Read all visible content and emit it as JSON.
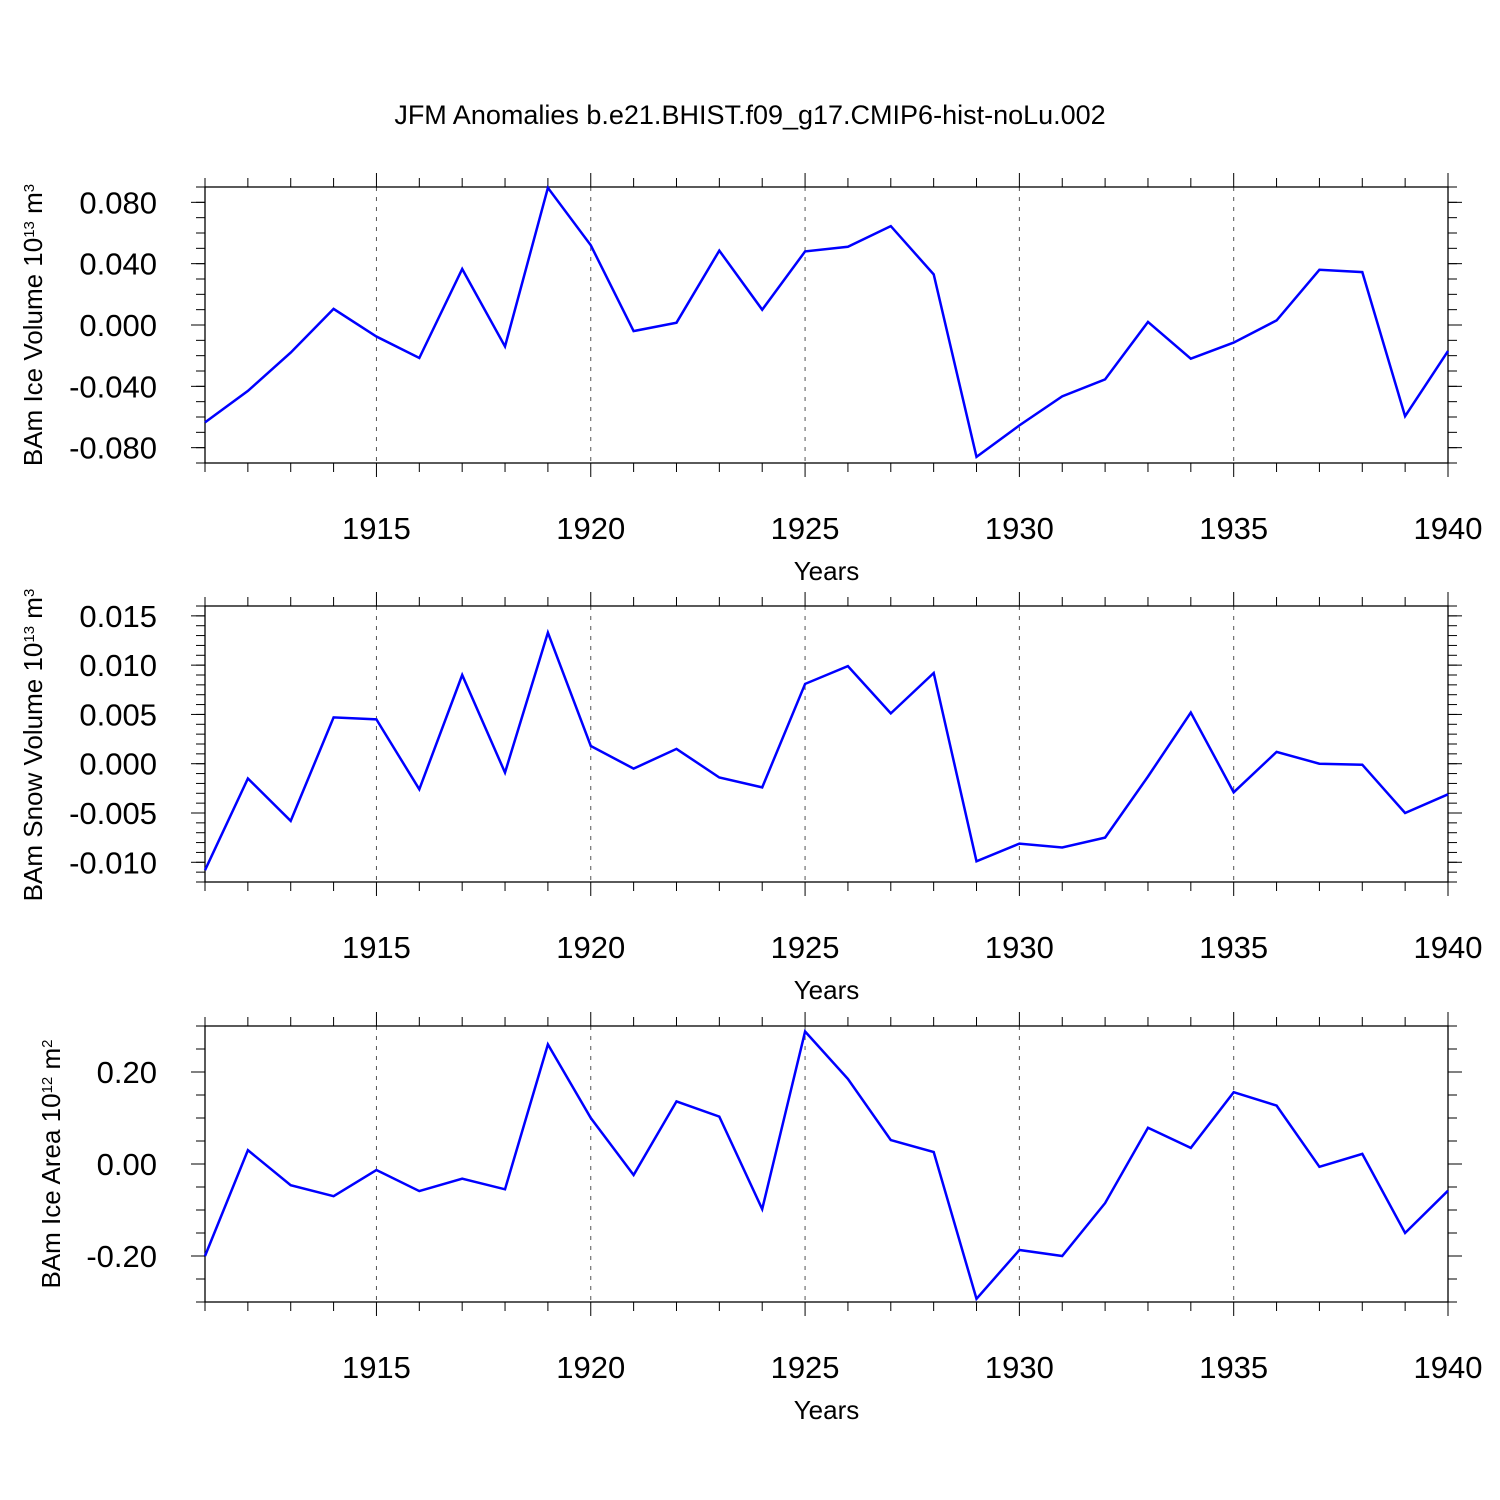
{
  "title": "JFM Anomalies b.e21.BHIST.f09_g17.CMIP6-hist-noLu.002",
  "chart_data": [
    {
      "type": "line",
      "title": "JFM Anomalies b.e21.BHIST.f09_g17.CMIP6-hist-noLu.002",
      "xlabel": "Years",
      "ylabel": "BAm Ice Volume 10",
      "ylabel_exp": "13",
      "ylabel_unit": " m",
      "ylabel_unit_exp": "3",
      "xlim": [
        1911,
        1940
      ],
      "ylim": [
        -0.09,
        0.09
      ],
      "xticks": [
        "1915",
        "1920",
        "1925",
        "1930",
        "1935",
        "1940"
      ],
      "yticks": [
        "0.080",
        "0.040",
        "0.000",
        "-0.040",
        "-0.080"
      ],
      "ytick_values": [
        0.08,
        0.04,
        0.0,
        -0.04,
        -0.08
      ],
      "yminor_step": 0.01,
      "color": "#0000ff",
      "x": [
        1911,
        1912,
        1913,
        1914,
        1915,
        1916,
        1917,
        1918,
        1919,
        1920,
        1921,
        1922,
        1923,
        1924,
        1925,
        1926,
        1927,
        1928,
        1929,
        1930,
        1931,
        1932,
        1933,
        1934,
        1935,
        1936,
        1937,
        1938,
        1939,
        1940
      ],
      "values": [
        -0.0635,
        -0.043,
        -0.018,
        0.0105,
        -0.0075,
        -0.0215,
        0.0365,
        -0.014,
        0.0895,
        0.052,
        -0.004,
        0.0015,
        0.0485,
        0.01,
        0.048,
        0.051,
        0.0645,
        0.033,
        -0.086,
        -0.0655,
        -0.0465,
        -0.0355,
        0.002,
        -0.022,
        -0.0115,
        0.003,
        0.036,
        0.0345,
        -0.0595,
        -0.017
      ]
    },
    {
      "type": "line",
      "xlabel": "Years",
      "ylabel": "BAm Snow Volume 10",
      "ylabel_exp": "13",
      "ylabel_unit": " m",
      "ylabel_unit_exp": "3",
      "xlim": [
        1911,
        1940
      ],
      "ylim": [
        -0.012,
        0.016
      ],
      "xticks": [
        "1915",
        "1920",
        "1925",
        "1930",
        "1935",
        "1940"
      ],
      "yticks": [
        "0.015",
        "0.010",
        "0.005",
        "0.000",
        "-0.005",
        "-0.010"
      ],
      "ytick_values": [
        0.015,
        0.01,
        0.005,
        0.0,
        -0.005,
        -0.01
      ],
      "yminor_step": 0.001,
      "color": "#0000ff",
      "x": [
        1911,
        1912,
        1913,
        1914,
        1915,
        1916,
        1917,
        1918,
        1919,
        1920,
        1921,
        1922,
        1923,
        1924,
        1925,
        1926,
        1927,
        1928,
        1929,
        1930,
        1931,
        1932,
        1933,
        1934,
        1935,
        1936,
        1937,
        1938,
        1939,
        1940
      ],
      "values": [
        -0.0108,
        -0.0015,
        -0.0058,
        0.0047,
        0.0045,
        -0.0026,
        0.009,
        -0.0009,
        0.0133,
        0.0018,
        -0.0005,
        0.0015,
        -0.0014,
        -0.0024,
        0.0081,
        0.0099,
        0.0051,
        0.0092,
        -0.0099,
        -0.0081,
        -0.0085,
        -0.0075,
        -0.0013,
        0.0052,
        -0.0029,
        0.0012,
        0.0,
        -0.0001,
        -0.005,
        -0.0031
      ]
    },
    {
      "type": "line",
      "xlabel": "Years",
      "ylabel": "BAm Ice Area 10",
      "ylabel_exp": "12",
      "ylabel_unit": " m",
      "ylabel_unit_exp": "2",
      "xlim": [
        1911,
        1940
      ],
      "ylim": [
        -0.3,
        0.3
      ],
      "xticks": [
        "1915",
        "1920",
        "1925",
        "1930",
        "1935",
        "1940"
      ],
      "yticks": [
        "0.20",
        "0.00",
        "-0.20"
      ],
      "ytick_values": [
        0.2,
        0.0,
        -0.2
      ],
      "yminor_step": 0.05,
      "color": "#0000ff",
      "x": [
        1911,
        1912,
        1913,
        1914,
        1915,
        1916,
        1917,
        1918,
        1919,
        1920,
        1921,
        1922,
        1923,
        1924,
        1925,
        1926,
        1927,
        1928,
        1929,
        1930,
        1931,
        1932,
        1933,
        1934,
        1935,
        1936,
        1937,
        1938,
        1939,
        1940
      ],
      "values": [
        -0.2,
        0.03,
        -0.046,
        -0.07,
        -0.013,
        -0.059,
        -0.032,
        -0.055,
        0.26,
        0.1,
        -0.024,
        0.136,
        0.103,
        -0.098,
        0.288,
        0.185,
        0.052,
        0.026,
        -0.293,
        -0.187,
        -0.2,
        -0.085,
        0.079,
        0.035,
        0.156,
        0.127,
        -0.006,
        0.022,
        -0.15,
        -0.058
      ]
    }
  ]
}
